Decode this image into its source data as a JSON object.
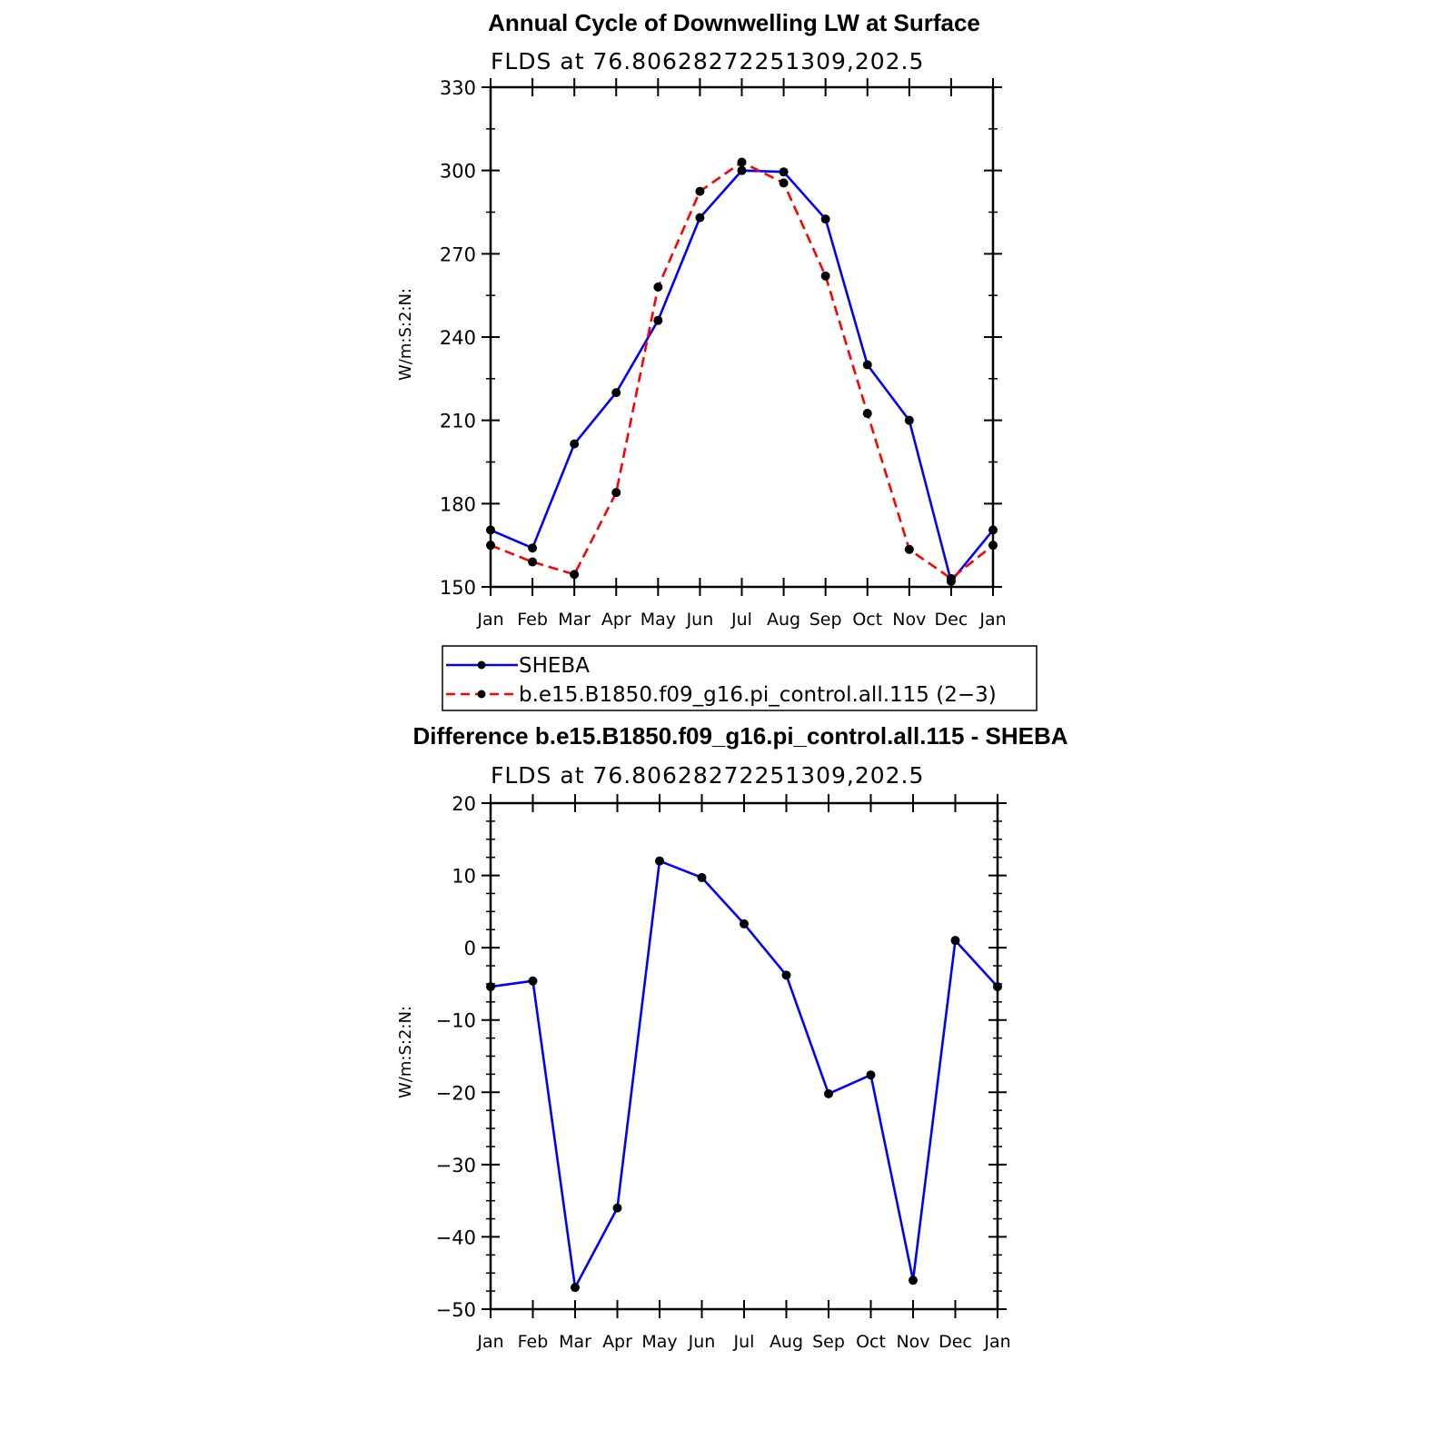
{
  "chart_data": [
    {
      "type": "line",
      "title": "Annual Cycle of Downwelling LW at Surface",
      "subtitle": "FLDS at 76.80628272251309,202.5",
      "ylabel": "W/m:S:2:N:",
      "categories": [
        "Jan",
        "Feb",
        "Mar",
        "Apr",
        "May",
        "Jun",
        "Jul",
        "Aug",
        "Sep",
        "Oct",
        "Nov",
        "Dec",
        "Jan"
      ],
      "ylim": [
        150,
        330
      ],
      "yticks": [
        "150",
        "180",
        "210",
        "240",
        "270",
        "300",
        "330"
      ],
      "series": [
        {
          "name": "SHEBA",
          "color": "#0000ff",
          "dash": false,
          "values": [
            170.5,
            164,
            201.5,
            220,
            246,
            283,
            300,
            299.5,
            282.5,
            230,
            210,
            152,
            170.5
          ]
        },
        {
          "name": "b.e15.B1850.f09_g16.pi_control.all.115 (2−3)",
          "color": "#ff0000",
          "dash": true,
          "values": [
            165,
            159,
            154.5,
            184,
            258,
            292.5,
            303,
            295.5,
            262,
            212.5,
            163.5,
            153,
            165
          ]
        }
      ]
    },
    {
      "type": "line",
      "title": "Difference b.e15.B1850.f09_g16.pi_control.all.115 - SHEBA",
      "subtitle": "FLDS at 76.80628272251309,202.5",
      "ylabel": "W/m:S:2:N:",
      "categories": [
        "Jan",
        "Feb",
        "Mar",
        "Apr",
        "May",
        "Jun",
        "Jul",
        "Aug",
        "Sep",
        "Oct",
        "Nov",
        "Dec",
        "Jan"
      ],
      "ylim": [
        -50,
        20
      ],
      "yticks": [
        "−50",
        "−40",
        "−30",
        "−20",
        "−10",
        "0",
        "10",
        "20"
      ],
      "series": [
        {
          "color": "#0000ff",
          "dash": false,
          "values": [
            -5.4,
            -4.6,
            -47,
            -36,
            12,
            9.7,
            3.3,
            -3.8,
            -20.2,
            -17.6,
            -46,
            1,
            -5.4
          ]
        }
      ]
    }
  ]
}
